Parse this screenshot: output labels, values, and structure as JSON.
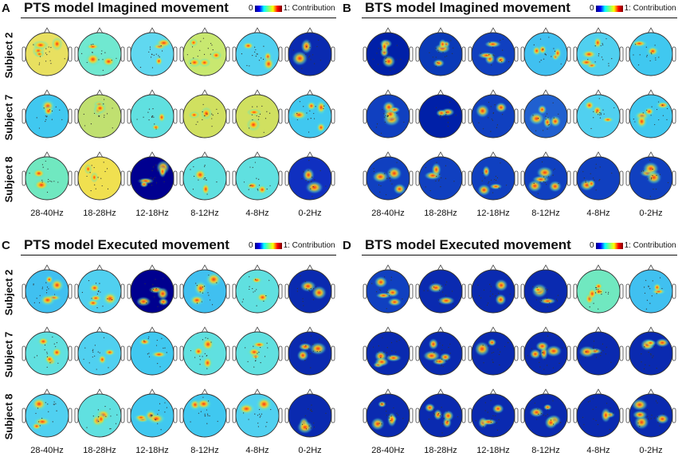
{
  "panels": [
    {
      "letter": "A",
      "title": "PTS model Imagined movement",
      "colorbar": {
        "min": "0",
        "max": "1",
        "label": ": Contribution"
      },
      "subjects": [
        "Subject 2",
        "Subject 7",
        "Subject 8"
      ],
      "frequencies": [
        "28-40Hz",
        "18-28Hz",
        "12-18Hz",
        "8-12Hz",
        "4-8Hz",
        "0-2Hz"
      ]
    },
    {
      "letter": "B",
      "title": "BTS model Imagined movement",
      "colorbar": {
        "min": "0",
        "max": "1",
        "label": ": Contribution"
      },
      "subjects": [],
      "frequencies": [
        "28-40Hz",
        "18-28Hz",
        "12-18Hz",
        "8-12Hz",
        "4-8Hz",
        "0-2Hz"
      ]
    },
    {
      "letter": "C",
      "title": "PTS model Executed movement",
      "colorbar": {
        "min": "0",
        "max": "1",
        "label": ": Contribution"
      },
      "subjects": [
        "Subject 2",
        "Subject 7",
        "Subject 8"
      ],
      "frequencies": [
        "28-40Hz",
        "18-28Hz",
        "12-18Hz",
        "8-12Hz",
        "4-8Hz",
        "0-2Hz"
      ]
    },
    {
      "letter": "D",
      "title": "BTS model Executed movement",
      "colorbar": {
        "min": "0",
        "max": "1",
        "label": ": Contribution"
      },
      "subjects": [],
      "frequencies": [
        "28-40Hz",
        "18-28Hz",
        "12-18Hz",
        "8-12Hz",
        "4-8Hz",
        "0-2Hz"
      ]
    }
  ],
  "colormap": {
    "name": "jet",
    "low": "#00007f",
    "mid": "#00ffff",
    "high": "#7f0000"
  },
  "head_map_backgrounds": {
    "A": [
      [
        "#e8e060",
        "#70e8d0",
        "#60d8f0",
        "#c8e870",
        "#50d0f0",
        "#0a2ab0"
      ],
      [
        "#40c8f0",
        "#c0e070",
        "#60e0e0",
        "#d0e060",
        "#d0e060",
        "#40c8f0"
      ],
      [
        "#70e8c0",
        "#f0e050",
        "#000090",
        "#60e0e0",
        "#60e0e0",
        "#1030c0"
      ]
    ],
    "B": [
      [
        "#0020a8",
        "#0a3ab8",
        "#1040c0",
        "#40c0f0",
        "#50d0f0",
        "#40c8f0"
      ],
      [
        "#1040c0",
        "#0020a8",
        "#1040c0",
        "#2060d0",
        "#50d0f0",
        "#40c8f0"
      ],
      [
        "#1040c0",
        "#1040c0",
        "#1040c0",
        "#1040c0",
        "#1040c0",
        "#1040c0"
      ]
    ],
    "C": [
      [
        "#40c0f0",
        "#50d0f0",
        "#00008f",
        "#40c0f0",
        "#60e0e0",
        "#0a2ab0"
      ],
      [
        "#60e0e0",
        "#50d0f0",
        "#40c8f0",
        "#60e0e0",
        "#60e0e0",
        "#0a2ab0"
      ],
      [
        "#50d0f0",
        "#60e0e0",
        "#40c8f0",
        "#40c8f0",
        "#50d0f0",
        "#0a2ab0"
      ]
    ],
    "D": [
      [
        "#1040c0",
        "#0a2ab0",
        "#0a2ab0",
        "#0a2ab0",
        "#70e8c0",
        "#40c0f0"
      ],
      [
        "#0a2ab0",
        "#0a2ab0",
        "#0a2ab0",
        "#0a2ab0",
        "#0a2ab0",
        "#0a2ab0"
      ],
      [
        "#0a2ab0",
        "#0a2ab0",
        "#0a2ab0",
        "#0a2ab0",
        "#0a2ab0",
        "#0a2ab0"
      ]
    ]
  },
  "hotspot_color": "#ff3010"
}
